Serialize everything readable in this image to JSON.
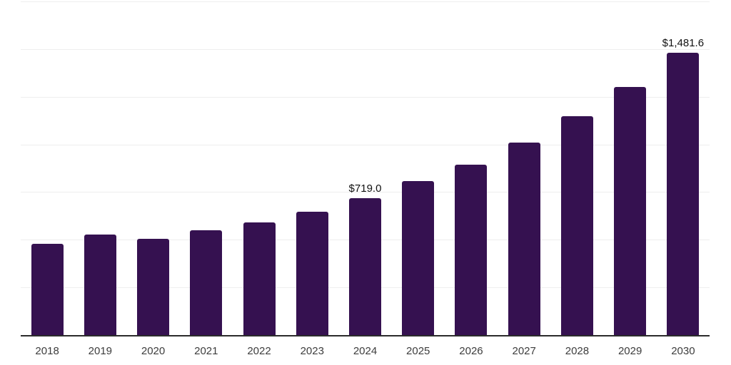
{
  "chart_data": {
    "type": "bar",
    "title": "",
    "xlabel": "",
    "ylabel": "",
    "categories": [
      "2018",
      "2019",
      "2020",
      "2021",
      "2022",
      "2023",
      "2024",
      "2025",
      "2026",
      "2027",
      "2028",
      "2029",
      "2030"
    ],
    "values": [
      477,
      529,
      506,
      551,
      592,
      648,
      719.0,
      808,
      894,
      1009,
      1147,
      1300,
      1481.6
    ],
    "data_labels": [
      {
        "category": "2024",
        "text": "$719.0"
      },
      {
        "category": "2030",
        "text": "$1,481.6"
      }
    ],
    "ylim": [
      0,
      1750
    ],
    "gridline_step": 250,
    "grid": "horizontal, unlabeled",
    "legend": "none",
    "y_axis_labels": "none",
    "colors": {
      "bar": "#351150",
      "axis_line": "#2b2b2b",
      "gridline": "#eeeeee",
      "tick_label": "#3d3d3d",
      "value_label": "#111111",
      "background": "#ffffff"
    }
  }
}
